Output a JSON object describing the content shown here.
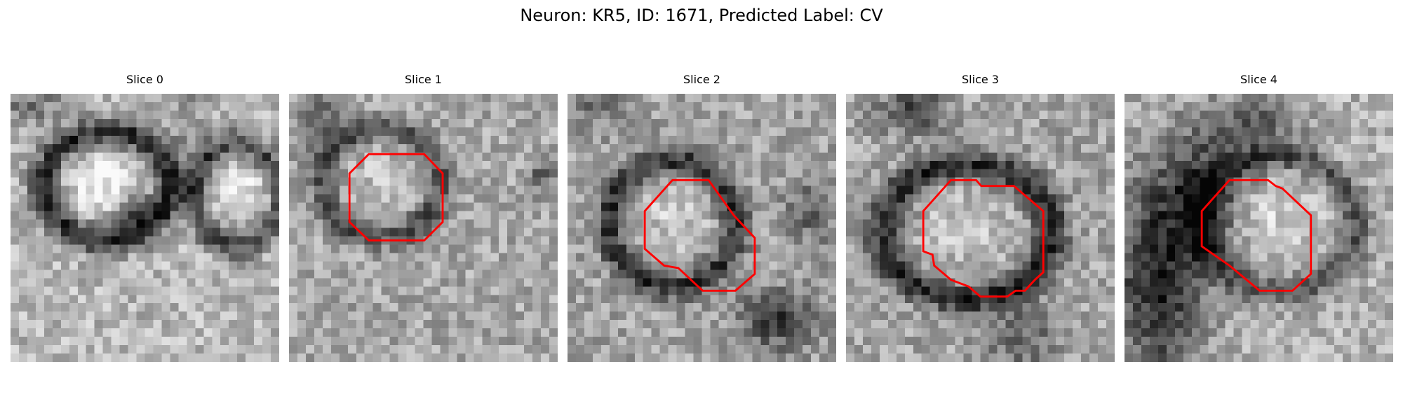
{
  "figure": {
    "suptitle": "Neuron: KR5, ID: 1671, Predicted Label: CV"
  },
  "colors": {
    "contour": "#ff0000",
    "background": "#ffffff"
  },
  "panels": [
    {
      "title": "Slice 0",
      "has_contour": false
    },
    {
      "title": "Slice 1",
      "has_contour": true
    },
    {
      "title": "Slice 2",
      "has_contour": true
    },
    {
      "title": "Slice 3",
      "has_contour": true
    },
    {
      "title": "Slice 4",
      "has_contour": true
    }
  ]
}
